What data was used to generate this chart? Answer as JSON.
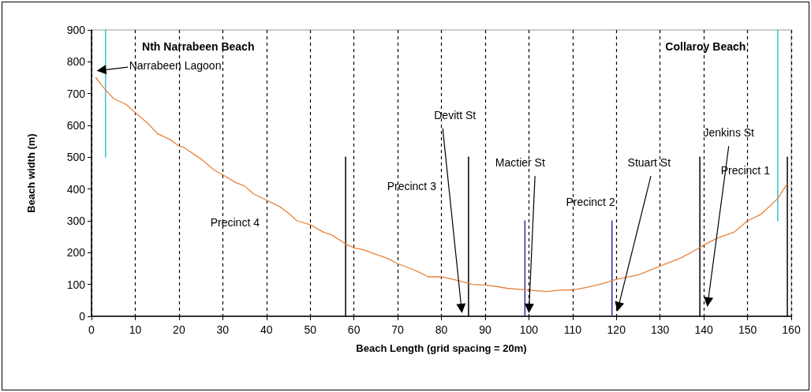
{
  "chart_data": {
    "type": "line",
    "xlabel": "Beach Length (grid spacing = 20m)",
    "ylabel": "Beach width (m)",
    "xlim": [
      0,
      160
    ],
    "xticks": [
      0,
      10,
      20,
      30,
      40,
      50,
      60,
      70,
      80,
      90,
      100,
      110,
      120,
      130,
      140,
      150,
      160
    ],
    "ylim": [
      0,
      900
    ],
    "yticks": [
      0,
      100,
      200,
      300,
      400,
      500,
      600,
      700,
      800,
      900
    ],
    "grid": "x",
    "marker": "none",
    "line_style": "solid",
    "series": [
      {
        "color": "#e8823a",
        "x": [
          1,
          3,
          5,
          8,
          10,
          13,
          15,
          18,
          20,
          21,
          25,
          28,
          30,
          33,
          35,
          37,
          40,
          43,
          45,
          47,
          50,
          53,
          55,
          58,
          60,
          62,
          65,
          68,
          70,
          73,
          75,
          77,
          80,
          83,
          85,
          87,
          90,
          93,
          95,
          100,
          104,
          107,
          110,
          113,
          117,
          120,
          125,
          130,
          135,
          139,
          140,
          143,
          147,
          150,
          153,
          155,
          157,
          159
        ],
        "values": [
          750,
          715,
          685,
          665,
          640,
          605,
          575,
          555,
          535,
          532,
          495,
          460,
          445,
          420,
          410,
          385,
          365,
          345,
          325,
          300,
          288,
          265,
          255,
          228,
          215,
          210,
          195,
          180,
          165,
          150,
          138,
          124,
          124,
          115,
          108,
          100,
          98,
          93,
          88,
          82,
          78,
          82,
          83,
          90,
          103,
          116,
          130,
          158,
          185,
          215,
          224,
          245,
          265,
          300,
          320,
          345,
          372,
          415
        ]
      },
      {
        "color": "#33c4d8",
        "x": [
          3.2,
          3.2
        ],
        "values": [
          500,
          900
        ]
      },
      {
        "color": "#33c4d8",
        "x": [
          156.9,
          156.9
        ],
        "values": [
          300,
          900
        ]
      },
      {
        "color": "#000000",
        "x": [
          58.1,
          58.1
        ],
        "values": [
          0,
          500
        ]
      },
      {
        "color": "#000000",
        "x": [
          86.2,
          86.2
        ],
        "values": [
          0,
          500
        ]
      },
      {
        "color": "#000000",
        "x": [
          139.1,
          139.1
        ],
        "values": [
          0,
          500
        ]
      },
      {
        "color": "#000000",
        "x": [
          159.1,
          159.1
        ],
        "values": [
          0,
          500
        ]
      },
      {
        "color": "#2a2aa8",
        "x": [
          99.1,
          99.1
        ],
        "values": [
          0,
          300
        ]
      },
      {
        "color": "#2a2aa8",
        "x": [
          119,
          119
        ],
        "values": [
          0,
          300
        ]
      }
    ],
    "annotations": [
      "Nth Narrabeen Beach",
      "Collaroy Beach",
      "Precinct 4",
      "Precinct 3",
      "Precinct 2",
      "Precinct 1",
      "Narrabeen Lagoon",
      "Devitt St",
      "Mactier St",
      "Stuart St",
      "Jenkins St"
    ]
  }
}
